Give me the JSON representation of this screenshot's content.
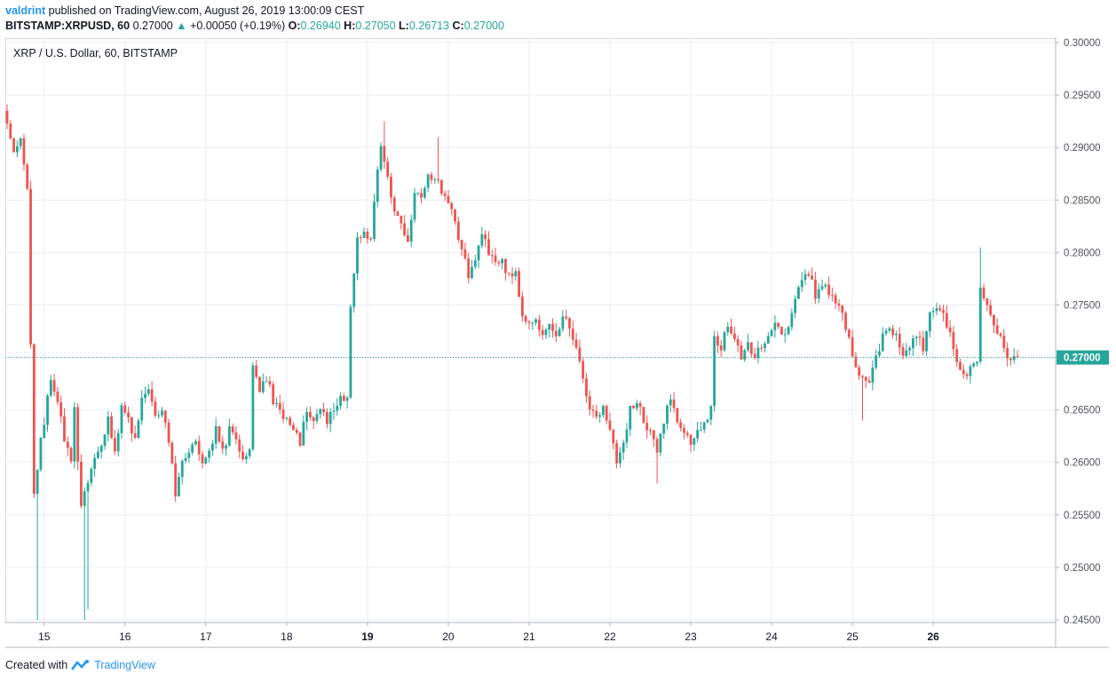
{
  "header": {
    "user": "valdrint",
    "published": "published on TradingView.com, August 26, 2019 13:00:09 CEST",
    "symbol": "BITSTAMP:XRPUSD, 60",
    "last": "0.27000",
    "arrow": "▲",
    "change": "+0.00050 (+0.19%)",
    "o_label": "O:",
    "o_val": "0.26940",
    "h_label": "H:",
    "h_val": "0.27050",
    "l_label": "L:",
    "l_val": "0.26713",
    "c_label": "C:",
    "c_val": "0.27000"
  },
  "chart_data": {
    "type": "candlestick",
    "title": "XRP / U.S. Dollar, 60, BITSTAMP",
    "x_ticks": [
      "15",
      "16",
      "17",
      "18",
      "19",
      "20",
      "21",
      "22",
      "23",
      "24",
      "25",
      "26"
    ],
    "y_ticks": [
      "0.24500",
      "0.25000",
      "0.25500",
      "0.26000",
      "0.26500",
      "0.27000",
      "0.27500",
      "0.28000",
      "0.28500",
      "0.29000",
      "0.29500",
      "0.30000"
    ],
    "ylim": [
      0.245,
      0.3
    ],
    "last_price": 0.27,
    "last_price_label": "0.27000",
    "grid": true,
    "up_color": "#26a69a",
    "down_color": "#ef5350",
    "path": [
      [
        0,
        0.2935
      ],
      [
        1,
        0.2925
      ],
      [
        3,
        0.29
      ],
      [
        5,
        0.291
      ],
      [
        7,
        0.286
      ],
      [
        9,
        0.257
      ],
      [
        11,
        0.262
      ],
      [
        13,
        0.266
      ],
      [
        14,
        0.268
      ],
      [
        16,
        0.266
      ],
      [
        18,
        0.262
      ],
      [
        20,
        0.26
      ],
      [
        21,
        0.265
      ],
      [
        23,
        0.256
      ],
      [
        25,
        0.258
      ],
      [
        27,
        0.26
      ],
      [
        29,
        0.262
      ],
      [
        31,
        0.264
      ],
      [
        33,
        0.261
      ],
      [
        35,
        0.265
      ],
      [
        37,
        0.264
      ],
      [
        39,
        0.262
      ],
      [
        41,
        0.266
      ],
      [
        43,
        0.267
      ],
      [
        45,
        0.264
      ],
      [
        47,
        0.265
      ],
      [
        49,
        0.262
      ],
      [
        51,
        0.257
      ],
      [
        53,
        0.26
      ],
      [
        55,
        0.261
      ],
      [
        57,
        0.262
      ],
      [
        59,
        0.26
      ],
      [
        61,
        0.261
      ],
      [
        63,
        0.263
      ],
      [
        65,
        0.261
      ],
      [
        67,
        0.263
      ],
      [
        69,
        0.262
      ],
      [
        71,
        0.26
      ],
      [
        73,
        0.261
      ],
      [
        74,
        0.269
      ],
      [
        76,
        0.267
      ],
      [
        78,
        0.268
      ],
      [
        80,
        0.266
      ],
      [
        82,
        0.265
      ],
      [
        84,
        0.264
      ],
      [
        86,
        0.263
      ],
      [
        88,
        0.262
      ],
      [
        90,
        0.265
      ],
      [
        92,
        0.264
      ],
      [
        94,
        0.265
      ],
      [
        96,
        0.264
      ],
      [
        98,
        0.265
      ],
      [
        100,
        0.266
      ],
      [
        102,
        0.266
      ],
      [
        103,
        0.275
      ],
      [
        105,
        0.281
      ],
      [
        107,
        0.282
      ],
      [
        109,
        0.281
      ],
      [
        111,
        0.288
      ],
      [
        112,
        0.29
      ],
      [
        114,
        0.287
      ],
      [
        116,
        0.284
      ],
      [
        118,
        0.283
      ],
      [
        120,
        0.281
      ],
      [
        122,
        0.286
      ],
      [
        124,
        0.285
      ],
      [
        126,
        0.287
      ],
      [
        128,
        0.287
      ],
      [
        130,
        0.286
      ],
      [
        132,
        0.285
      ],
      [
        134,
        0.283
      ],
      [
        136,
        0.28
      ],
      [
        138,
        0.278
      ],
      [
        140,
        0.279
      ],
      [
        142,
        0.282
      ],
      [
        144,
        0.28
      ],
      [
        146,
        0.279
      ],
      [
        148,
        0.279
      ],
      [
        150,
        0.278
      ],
      [
        152,
        0.278
      ],
      [
        154,
        0.274
      ],
      [
        156,
        0.273
      ],
      [
        158,
        0.274
      ],
      [
        160,
        0.272
      ],
      [
        162,
        0.273
      ],
      [
        164,
        0.272
      ],
      [
        166,
        0.274
      ],
      [
        168,
        0.273
      ],
      [
        170,
        0.271
      ],
      [
        172,
        0.268
      ],
      [
        174,
        0.265
      ],
      [
        176,
        0.264
      ],
      [
        178,
        0.265
      ],
      [
        180,
        0.263
      ],
      [
        182,
        0.26
      ],
      [
        184,
        0.262
      ],
      [
        186,
        0.265
      ],
      [
        188,
        0.266
      ],
      [
        190,
        0.264
      ],
      [
        192,
        0.263
      ],
      [
        194,
        0.261
      ],
      [
        196,
        0.264
      ],
      [
        198,
        0.266
      ],
      [
        200,
        0.264
      ],
      [
        202,
        0.263
      ],
      [
        204,
        0.262
      ],
      [
        206,
        0.263
      ],
      [
        208,
        0.264
      ],
      [
        210,
        0.265
      ],
      [
        211,
        0.272
      ],
      [
        213,
        0.271
      ],
      [
        215,
        0.273
      ],
      [
        217,
        0.272
      ],
      [
        219,
        0.27
      ],
      [
        221,
        0.271
      ],
      [
        223,
        0.27
      ],
      [
        225,
        0.271
      ],
      [
        227,
        0.272
      ],
      [
        229,
        0.273
      ],
      [
        231,
        0.272
      ],
      [
        233,
        0.273
      ],
      [
        235,
        0.276
      ],
      [
        237,
        0.277
      ],
      [
        239,
        0.278
      ],
      [
        241,
        0.276
      ],
      [
        243,
        0.277
      ],
      [
        245,
        0.276
      ],
      [
        247,
        0.275
      ],
      [
        249,
        0.274
      ],
      [
        251,
        0.272
      ],
      [
        253,
        0.269
      ],
      [
        255,
        0.268
      ],
      [
        257,
        0.268
      ],
      [
        259,
        0.27
      ],
      [
        261,
        0.272
      ],
      [
        263,
        0.273
      ],
      [
        265,
        0.272
      ],
      [
        267,
        0.27
      ],
      [
        269,
        0.271
      ],
      [
        271,
        0.272
      ],
      [
        273,
        0.271
      ],
      [
        275,
        0.274
      ],
      [
        277,
        0.275
      ],
      [
        279,
        0.274
      ],
      [
        281,
        0.272
      ],
      [
        283,
        0.27
      ],
      [
        285,
        0.268
      ],
      [
        287,
        0.269
      ],
      [
        289,
        0.27
      ],
      [
        290,
        0.277
      ],
      [
        292,
        0.275
      ],
      [
        294,
        0.273
      ],
      [
        296,
        0.272
      ],
      [
        298,
        0.27
      ],
      [
        300,
        0.27
      ]
    ],
    "x_tick_at": [
      11,
      35,
      59,
      83,
      107,
      131,
      155,
      179,
      203,
      227,
      251,
      275
    ]
  }
}
